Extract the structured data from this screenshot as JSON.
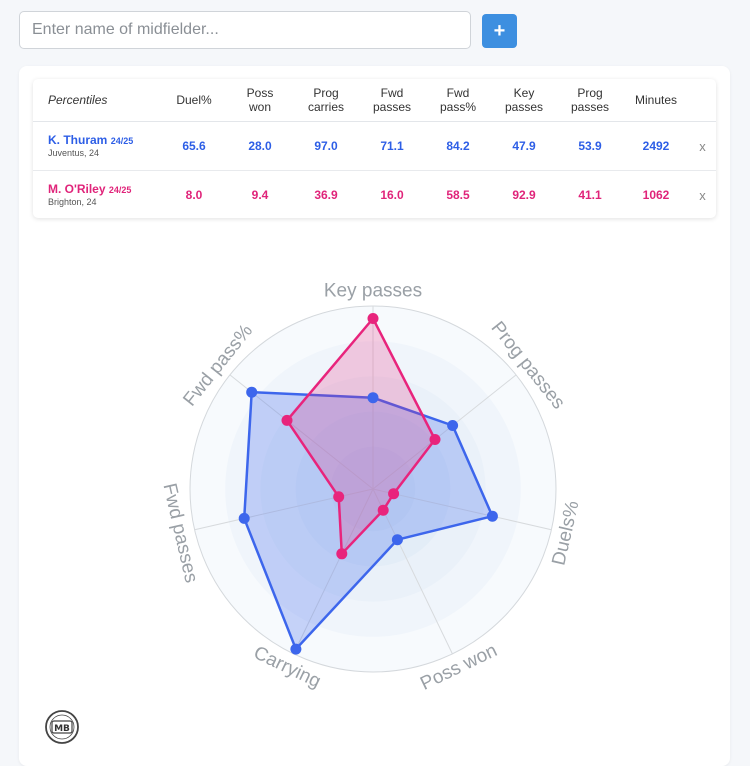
{
  "search": {
    "placeholder": "Enter name of midfielder...",
    "value": ""
  },
  "add_button": {
    "label": "+"
  },
  "table": {
    "corner_label": "Percentiles",
    "columns": [
      [
        "Duel%"
      ],
      [
        "Poss",
        "won"
      ],
      [
        "Prog",
        "carries"
      ],
      [
        "Fwd",
        "passes"
      ],
      [
        "Fwd",
        "pass%"
      ],
      [
        "Key",
        "passes"
      ],
      [
        "Prog",
        "passes"
      ],
      [
        "Minutes"
      ]
    ],
    "rows": [
      {
        "name": "K. Thuram",
        "season": "24/25",
        "team": "Juventus, 24",
        "values": [
          "65.6",
          "28.0",
          "97.0",
          "71.1",
          "84.2",
          "47.9",
          "53.9",
          "2492"
        ],
        "remove": "x"
      },
      {
        "name": "M. O'Riley",
        "season": "24/25",
        "team": "Brighton, 24",
        "values": [
          "8.0",
          "9.4",
          "36.9",
          "16.0",
          "58.5",
          "92.9",
          "41.1",
          "1062"
        ],
        "remove": "x"
      }
    ]
  },
  "chart_data": {
    "type": "radar",
    "axes": [
      "Key passes",
      "Prog passes",
      "Duels%",
      "Poss won",
      "Carrying",
      "Fwd passes",
      "Fwd pass%"
    ],
    "range": [
      0,
      100
    ],
    "rings": 5,
    "grid": true,
    "series": [
      {
        "name": "K. Thuram",
        "color": "#3d66ec",
        "values": [
          47.9,
          53.9,
          65.6,
          28.0,
          97.0,
          71.1,
          84.2
        ]
      },
      {
        "name": "M. O'Riley",
        "color": "#e8247c",
        "values": [
          92.9,
          41.1,
          8.0,
          9.4,
          36.9,
          16.0,
          58.5
        ]
      }
    ]
  },
  "logo": {
    "text": "MB"
  },
  "colors": {
    "accent": "#3d8fe0",
    "player_a": "#2d5ee6",
    "player_b": "#e0247a"
  }
}
